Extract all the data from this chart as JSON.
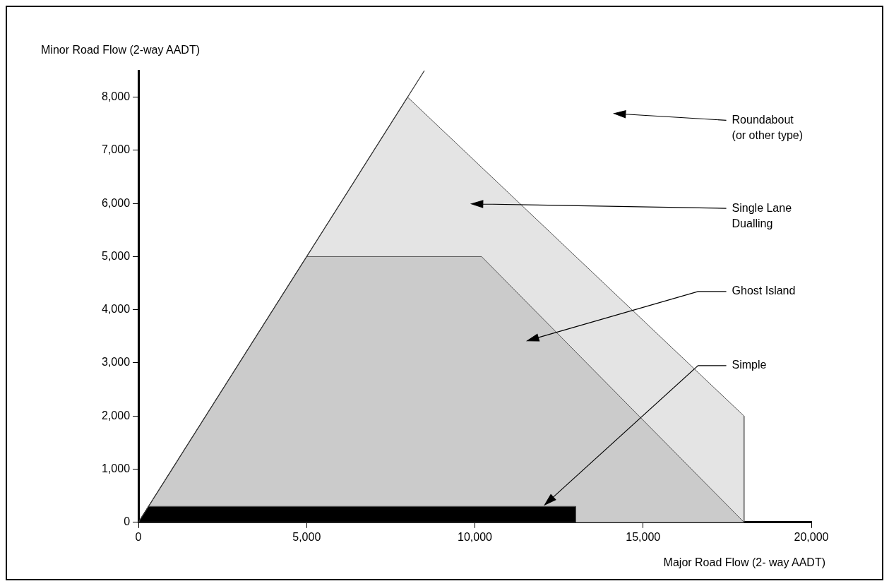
{
  "chart_data": {
    "type": "area",
    "xlabel": "Major Road Flow (2- way AADT)",
    "ylabel": "Minor Road Flow (2-way AADT)",
    "xlim": [
      0,
      20000
    ],
    "ylim": [
      0,
      8500
    ],
    "xticks": [
      0,
      {
        "value": 5000,
        "label": "5,000"
      },
      {
        "value": 10000,
        "label": "10,000"
      },
      {
        "value": 15000,
        "label": "15,000"
      },
      {
        "value": 20000,
        "label": "20,000"
      }
    ],
    "yticks": [
      0,
      {
        "value": 1000,
        "label": "1,000"
      },
      {
        "value": 2000,
        "label": "2,000"
      },
      {
        "value": 3000,
        "label": "3,000"
      },
      {
        "value": 4000,
        "label": "4,000"
      },
      {
        "value": 5000,
        "label": "5,000"
      },
      {
        "value": 6000,
        "label": "6,000"
      },
      {
        "value": 7000,
        "label": "7,000"
      },
      {
        "value": 8000,
        "label": "8,000"
      }
    ],
    "grid": false,
    "legend": false,
    "series": [
      {
        "type": "area",
        "color": "#e4e4e4",
        "x": [
          0,
          8000,
          18000,
          18000
        ],
        "values": [
          0,
          8000,
          2000,
          0
        ]
      },
      {
        "type": "area",
        "color": "#cbcbcb",
        "x": [
          0,
          5000,
          10200,
          18000
        ],
        "values": [
          0,
          5000,
          5000,
          0
        ]
      },
      {
        "type": "area",
        "color": "#000000",
        "x": [
          0,
          300,
          13000,
          13000
        ],
        "values": [
          0,
          300,
          300,
          0
        ]
      },
      {
        "type": "line",
        "color": "#333333",
        "x": [
          0,
          8500
        ],
        "values": [
          0,
          8500
        ]
      }
    ],
    "annotations": [
      "Roundabout (or other type)",
      "Single Lane Dualling",
      "Ghost Island",
      "Simple"
    ]
  }
}
